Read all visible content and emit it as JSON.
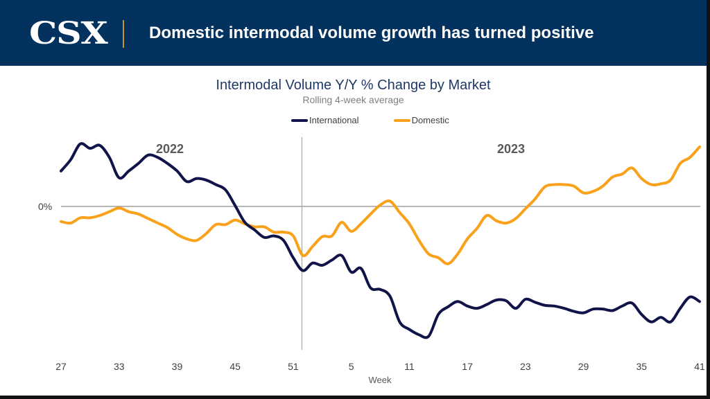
{
  "header": {
    "logo": "CSX",
    "headline": "Domestic intermodal volume growth has turned positive"
  },
  "colors": {
    "header_bg": "#04325f",
    "international": "#101448",
    "domestic": "#f9a11b",
    "divider": "#c9952e"
  },
  "chart_data": {
    "type": "line",
    "title": "Intermodal Volume Y/Y % Change by Market",
    "subtitle": "Rolling 4-week average",
    "xlabel": "Week",
    "ylabel": "",
    "y_tick_labels": [
      "0%"
    ],
    "y_units_note": "y-axis unlabeled except 0%; values are relative index units",
    "ylim": [
      -38,
      18
    ],
    "legend_position": "top-center",
    "grid": false,
    "year_labels": [
      "2022",
      "2023"
    ],
    "year_divider_after_week_index": 25,
    "x_tick_labels": [
      "27",
      "33",
      "39",
      "45",
      "51",
      "5",
      "11",
      "17",
      "23",
      "29",
      "35",
      "41"
    ],
    "x": [
      "27",
      "28",
      "29",
      "30",
      "31",
      "32",
      "33",
      "34",
      "35",
      "36",
      "37",
      "38",
      "39",
      "40",
      "41",
      "42",
      "43",
      "44",
      "45",
      "46",
      "47",
      "48",
      "49",
      "50",
      "51",
      "52",
      "1",
      "2",
      "3",
      "4",
      "5",
      "6",
      "7",
      "8",
      "9",
      "10",
      "11",
      "12",
      "13",
      "14",
      "15",
      "16",
      "17",
      "18",
      "19",
      "20",
      "21",
      "22",
      "23",
      "24",
      "25",
      "26",
      "27",
      "28",
      "29",
      "30",
      "31",
      "32",
      "33",
      "34",
      "35",
      "36",
      "37",
      "38",
      "39",
      "40",
      "41"
    ],
    "series": [
      {
        "name": "International",
        "values": [
          9.4,
          12.4,
          16.6,
          15.4,
          16.2,
          13.0,
          7.6,
          9.4,
          11.4,
          13.6,
          13.0,
          11.4,
          9.4,
          6.6,
          7.4,
          7.0,
          5.8,
          4.4,
          0.2,
          -4.2,
          -6.2,
          -8.2,
          -7.8,
          -9.0,
          -13.6,
          -17.0,
          -15.0,
          -15.6,
          -14.2,
          -13.0,
          -17.4,
          -16.4,
          -21.6,
          -22.0,
          -23.8,
          -30.6,
          -32.6,
          -34.0,
          -34.4,
          -28.6,
          -26.6,
          -25.2,
          -26.4,
          -27.0,
          -26.0,
          -24.8,
          -25.0,
          -27.0,
          -24.6,
          -25.4,
          -26.2,
          -26.4,
          -27.0,
          -27.8,
          -28.2,
          -27.2,
          -27.2,
          -27.6,
          -26.4,
          -25.6,
          -28.6,
          -30.6,
          -29.4,
          -30.6,
          -27.0,
          -24.0,
          -25.2
        ]
      },
      {
        "name": "Domestic",
        "values": [
          -4.0,
          -4.4,
          -3.0,
          -3.0,
          -2.4,
          -1.4,
          -0.4,
          -1.4,
          -2.0,
          -3.2,
          -4.4,
          -5.6,
          -7.4,
          -8.6,
          -9.0,
          -7.2,
          -4.8,
          -4.8,
          -3.6,
          -4.6,
          -5.4,
          -5.4,
          -6.8,
          -6.8,
          -7.8,
          -13.0,
          -10.6,
          -8.0,
          -7.8,
          -4.2,
          -6.6,
          -4.6,
          -2.0,
          0.4,
          1.4,
          -1.6,
          -4.6,
          -9.0,
          -12.6,
          -13.6,
          -15.2,
          -12.6,
          -8.6,
          -5.8,
          -2.4,
          -3.8,
          -4.4,
          -3.2,
          -0.6,
          2.0,
          5.2,
          5.8,
          5.8,
          5.4,
          3.6,
          4.0,
          5.4,
          7.8,
          8.6,
          10.2,
          7.4,
          5.8,
          6.0,
          7.0,
          11.4,
          13.0,
          15.8
        ]
      }
    ]
  }
}
